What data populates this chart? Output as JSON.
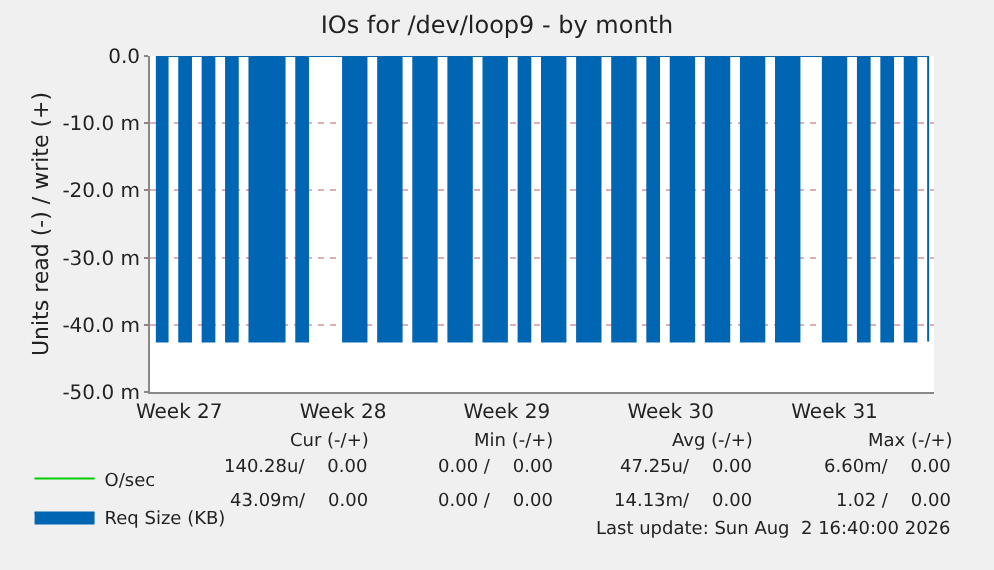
{
  "chart_data": {
    "type": "area",
    "title": "IOs for /dev/loop9 - by month",
    "ylabel": "Units read (-) / write (+)",
    "categories": [
      null,
      null,
      "Week 27",
      null,
      null,
      null,
      null,
      null,
      null,
      null,
      null,
      null,
      null,
      null,
      null,
      null,
      "Week 28",
      null,
      null,
      null,
      null,
      null,
      null,
      null,
      null,
      null,
      null,
      null,
      null,
      null,
      "Week 29",
      null,
      null,
      null,
      null,
      null,
      null,
      null,
      null,
      null,
      null,
      null,
      null,
      null,
      "Week 30",
      null,
      null,
      null,
      null,
      null,
      null,
      null,
      null,
      null,
      null,
      null,
      null,
      null,
      "Week 31",
      null,
      null,
      null,
      null,
      null,
      null,
      null,
      null
    ],
    "ylim": [
      -50,
      0
    ],
    "yticks": [
      {
        "value": -50,
        "label": "-50.0 m"
      },
      {
        "value": -40,
        "label": "-40.0 m"
      },
      {
        "value": -30,
        "label": "-30.0 m"
      },
      {
        "value": -20,
        "label": "-20.0 m"
      },
      {
        "value": -10,
        "label": "-10.0 m"
      },
      {
        "value": 0,
        "label": "0.0"
      }
    ],
    "grid": "y",
    "legend": "bottom left",
    "series": [
      {
        "name": "O/sec",
        "color": "#00cc00",
        "type": "line",
        "values": [
          null,
          null,
          null,
          null,
          null,
          null,
          null,
          null,
          null,
          null,
          null,
          null,
          null,
          null,
          null,
          null,
          null,
          null,
          null,
          null,
          null,
          null,
          null,
          null,
          null,
          null,
          null,
          null,
          null,
          null,
          null,
          null,
          null,
          null,
          null,
          null,
          null,
          null,
          null,
          null,
          null,
          null,
          null,
          null,
          null,
          null,
          null,
          null,
          null,
          null,
          null,
          null,
          null,
          null,
          null,
          null,
          null,
          null,
          null,
          null,
          null,
          null,
          null,
          null,
          null,
          null,
          null
        ]
      },
      {
        "name": "Req Size (KB)",
        "color": "#0066b3",
        "values": [
          -42.5,
          0,
          -42.5,
          0,
          -42.5,
          0,
          -42.5,
          0,
          -42.5,
          -42.5,
          -42.5,
          0,
          -42.5,
          0,
          0,
          0,
          -42.5,
          -42.5,
          0,
          -42.5,
          -42.5,
          0,
          -42.5,
          -42.5,
          0,
          -42.5,
          -42.5,
          0,
          -42.5,
          -42.5,
          0,
          -42.5,
          0,
          -42.5,
          -42.5,
          0,
          -42.5,
          -42.5,
          0,
          -42.5,
          -42.5,
          0,
          -42.5,
          0,
          -42.5,
          -42.5,
          0,
          -42.5,
          -42.5,
          0,
          -42.5,
          -42.5,
          0,
          -42.5,
          -42.5,
          0,
          0,
          -42.5,
          -42.5,
          0,
          -42.5,
          0,
          -42.5,
          0,
          -42.5,
          0,
          -42.5
        ]
      }
    ],
    "annotations": [
      "Cur (-/+)",
      "Min (-/+)",
      "Avg (-/+)",
      "Max (-/+)",
      "140.28u/    0.00",
      "0.00 /    0.00",
      "47.25u/    0.00",
      "6.60m/    0.00",
      "43.09m/    0.00",
      "0.00 /    0.00",
      "14.13m/    0.00",
      "1.02 /    0.00",
      "Last update: Sun Aug  2 16:40:00 2026"
    ]
  }
}
